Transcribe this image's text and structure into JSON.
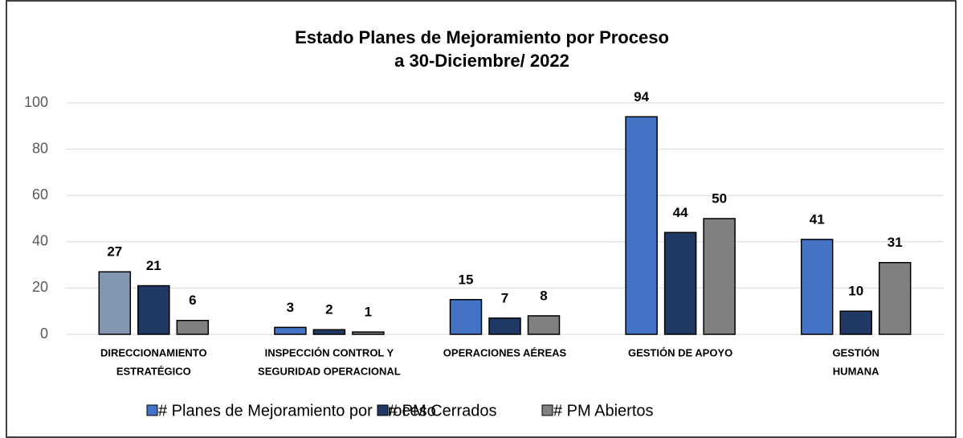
{
  "chart_data": {
    "type": "bar",
    "title": [
      "Estado Planes de Mejoramiento  por Proceso",
      "a 30-Diciembre/  2022"
    ],
    "categories": [
      [
        "DIRECCIONAMIENTO",
        "ESTRATÉGICO"
      ],
      [
        "INSPECCIÓN CONTROL Y",
        "SEGURIDAD OPERACIONAL"
      ],
      [
        "OPERACIONES AÉREAS"
      ],
      [
        "GESTIÓN DE APOYO"
      ],
      [
        "GESTIÓN",
        "HUMANA"
      ]
    ],
    "series": [
      {
        "name": "# Planes de Mejoramiento por Proceso",
        "color": "#4472c4",
        "point_colors": [
          "#8497b0",
          "#4472c4",
          "#4472c4",
          "#4472c4",
          "#4472c4"
        ],
        "values": [
          27,
          3,
          15,
          94,
          41
        ]
      },
      {
        "name": "# PM Cerrados",
        "color": "#203864",
        "values": [
          21,
          2,
          7,
          44,
          10
        ]
      },
      {
        "name": "# PM Abiertos",
        "color": "#808080",
        "values": [
          6,
          1,
          8,
          50,
          31
        ]
      }
    ],
    "ylim": [
      0,
      100
    ],
    "yticks": [
      0,
      20,
      40,
      60,
      80,
      100
    ],
    "grid": true,
    "legend": "bottom"
  }
}
